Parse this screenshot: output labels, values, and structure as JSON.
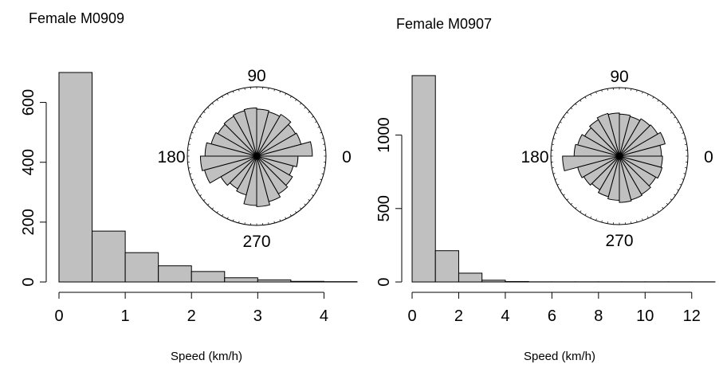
{
  "colors": {
    "bar_fill": "#c0c0c0",
    "stroke": "#000000",
    "background": "#ffffff"
  },
  "chart_data": [
    {
      "type": "bar",
      "title": "Female M0909",
      "xlabel": "Speed (km/h)",
      "ylabel": "",
      "bin_width": 0.5,
      "bin_edges": [
        0,
        0.5,
        1,
        1.5,
        2,
        2.5,
        3,
        3.5,
        4,
        4.5
      ],
      "values": [
        700,
        170,
        98,
        54,
        35,
        14,
        7,
        2,
        1
      ],
      "xlim": [
        0,
        4.5
      ],
      "ylim": [
        0,
        700
      ],
      "x_ticks": [
        0,
        1,
        2,
        3,
        4
      ],
      "x_tick_labels": [
        "0",
        "1",
        "2",
        "3",
        "4"
      ],
      "y_ticks": [
        0,
        200,
        400,
        600
      ],
      "y_tick_labels": [
        "0",
        "200",
        "400",
        "600"
      ],
      "grid": false,
      "inset": {
        "type": "rose",
        "labels": {
          "east": "0",
          "north": "90",
          "west": "180",
          "south": "270"
        },
        "sector_count": 24,
        "radii": [
          0.97,
          0.8,
          0.78,
          0.84,
          0.8,
          0.82,
          0.84,
          0.82,
          0.8,
          0.78,
          0.82,
          0.9,
          0.98,
          0.94,
          0.72,
          0.66,
          0.7,
          0.86,
          0.88,
          0.82,
          0.76,
          0.72,
          0.66,
          0.72
        ]
      }
    },
    {
      "type": "bar",
      "title": "Female M0907",
      "xlabel": "Speed (km/h)",
      "ylabel": "",
      "bin_width": 1,
      "bin_edges": [
        0,
        1,
        2,
        3,
        4,
        5,
        6,
        7,
        8,
        9,
        10,
        11,
        12,
        13
      ],
      "values": [
        1405,
        213,
        60,
        12,
        3,
        1,
        1,
        1,
        1,
        1,
        1,
        1,
        1
      ],
      "xlim": [
        0,
        13
      ],
      "ylim": [
        0,
        1410
      ],
      "x_ticks": [
        0,
        2,
        4,
        6,
        8,
        10,
        12
      ],
      "x_tick_labels": [
        "0",
        "2",
        "4",
        "6",
        "8",
        "10",
        "12"
      ],
      "y_ticks": [
        0,
        500,
        1000
      ],
      "y_tick_labels": [
        "0",
        "500",
        "1000"
      ],
      "grid": false,
      "inset": {
        "type": "rose",
        "labels": {
          "east": "0",
          "north": "90",
          "west": "180",
          "south": "270"
        },
        "sector_count": 24,
        "radii": [
          0.8,
          0.9,
          0.84,
          0.82,
          0.78,
          0.8,
          0.82,
          0.84,
          0.8,
          0.76,
          0.82,
          0.86,
          1.08,
          0.82,
          0.78,
          0.74,
          0.8,
          0.84,
          0.88,
          0.86,
          0.84,
          0.8,
          0.84,
          0.82
        ]
      }
    }
  ]
}
